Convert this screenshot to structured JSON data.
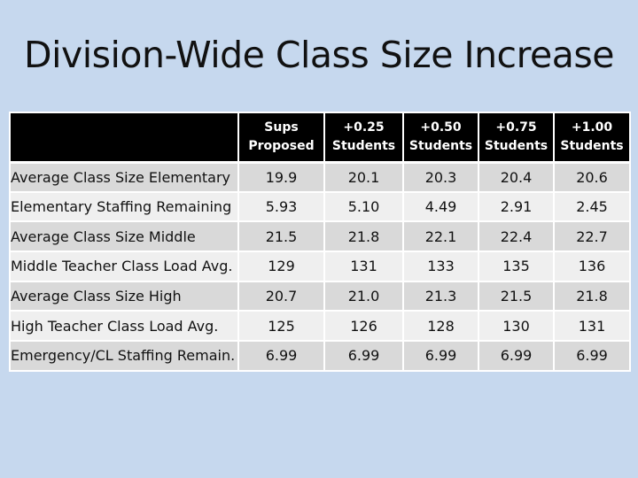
{
  "slide": {
    "title": "Division-Wide Class Size Increase"
  },
  "table": {
    "columns": [
      {
        "line1": "Sups",
        "line2": "Proposed"
      },
      {
        "line1": "+0.25",
        "line2": "Students"
      },
      {
        "line1": "+0.50",
        "line2": "Students"
      },
      {
        "line1": "+0.75",
        "line2": "Students"
      },
      {
        "line1": "+1.00",
        "line2": "Students"
      }
    ],
    "rows": [
      {
        "label": "Average Class Size Elementary",
        "values": [
          "19.9",
          "20.1",
          "20.3",
          "20.4",
          "20.6"
        ]
      },
      {
        "label": "Elementary Staffing Remaining",
        "values": [
          "5.93",
          "5.10",
          "4.49",
          "2.91",
          "2.45"
        ]
      },
      {
        "label": "Average Class Size Middle",
        "values": [
          "21.5",
          "21.8",
          "22.1",
          "22.4",
          "22.7"
        ]
      },
      {
        "label": "Middle Teacher Class Load Avg.",
        "values": [
          "129",
          "131",
          "133",
          "135",
          "136"
        ]
      },
      {
        "label": "Average Class Size High",
        "values": [
          "20.7",
          "21.0",
          "21.3",
          "21.5",
          "21.8"
        ]
      },
      {
        "label": "High Teacher Class Load Avg.",
        "values": [
          "125",
          "126",
          "128",
          "130",
          "131"
        ]
      },
      {
        "label": "Emergency/CL Staffing Remain.",
        "values": [
          "6.99",
          "6.99",
          "6.99",
          "6.99",
          "6.99"
        ]
      }
    ]
  },
  "colors": {
    "background": "#c6d8ee",
    "header_bg": "#000000",
    "row_dark": "#d9d9d9",
    "row_light": "#efefef"
  }
}
